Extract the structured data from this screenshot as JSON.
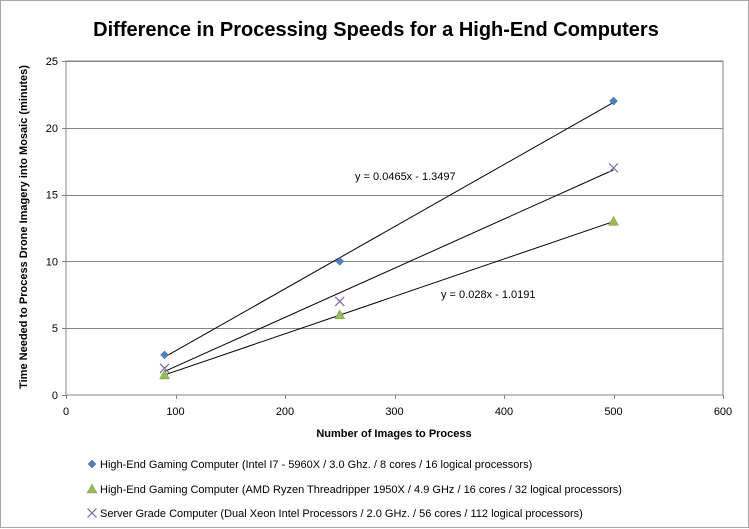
{
  "chart_data": {
    "type": "scatter",
    "title": "Difference in Processing Speeds for a High-End Computers",
    "xlabel": "Number of Images to Process",
    "ylabel": "Time Needed to Process Drone Imagery into Mosaic (minutes)",
    "xlim": [
      0,
      600
    ],
    "ylim": [
      0,
      25
    ],
    "x_ticks": [
      0,
      100,
      200,
      300,
      400,
      500,
      600
    ],
    "y_ticks": [
      0,
      5,
      10,
      15,
      20,
      25
    ],
    "grid": "horizontal",
    "legend_position": "bottom",
    "series": [
      {
        "name": "High-End Gaming Computer  (Intel I7 - 5960X / 3.0 Ghz. / 8 cores / 16 logical processors)",
        "marker": "diamond",
        "color": "#4f81bd",
        "x": [
          90,
          250,
          500
        ],
        "y": [
          3,
          10,
          22
        ],
        "trendline": {
          "slope": 0.0465,
          "intercept": -1.3497,
          "label": "y = 0.0465x - 1.3497"
        }
      },
      {
        "name": "High-End Gaming Computer (AMD Ryzen Threadripper 1950X / 4.9 GHz / 16 cores / 32 logical processors)",
        "marker": "triangle",
        "color": "#9bbb59",
        "x": [
          90,
          250,
          500
        ],
        "y": [
          1.5,
          6,
          13
        ],
        "trendline": {
          "slope": 0.028,
          "intercept": -1.0191,
          "label": "y = 0.028x - 1.0191"
        }
      },
      {
        "name": "Server Grade Computer (Dual Xeon Intel Processors / 2.0 GHz. / 56 cores / 112 logical processors)",
        "marker": "x",
        "color": "#8064a2",
        "x": [
          90,
          250,
          500
        ],
        "y": [
          2,
          7,
          17
        ],
        "trendline": {
          "slope": 0.0368,
          "intercept": -1.55,
          "label": ""
        }
      }
    ]
  }
}
